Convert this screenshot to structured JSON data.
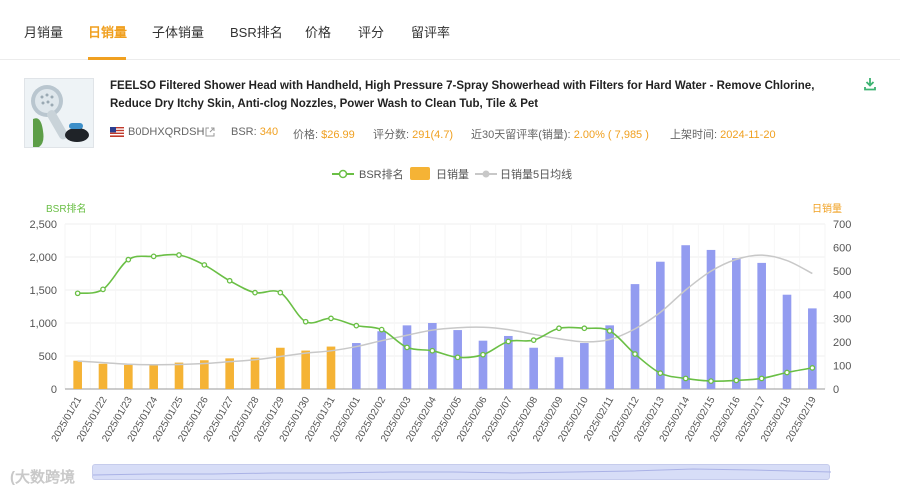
{
  "tabs": [
    {
      "label": "月销量",
      "active": false
    },
    {
      "label": "日销量",
      "active": true
    },
    {
      "label": "子体销量",
      "active": false
    },
    {
      "label": "BSR排名",
      "active": false
    },
    {
      "label": "价格",
      "active": false
    },
    {
      "label": "评分",
      "active": false
    },
    {
      "label": "留评率",
      "active": false
    }
  ],
  "product": {
    "title": "FEELSO Filtered Shower Head with Handheld, High Pressure 7-Spray Showerhead with Filters for Hard Water - Remove Chlorine, Reduce Dry Itchy Skin, Anti-clog Nozzles, Power Wash to Clean Tub, Tile & Pet",
    "asin": "B0DHXQRDSH",
    "bsr_label": "BSR:",
    "bsr_value": "340",
    "price_label": "价格:",
    "price_value": "$26.99",
    "ratings_label": "评分数:",
    "ratings_value": "291(4.7)",
    "review_rate_label": "近30天留评率(销量):",
    "review_rate_value": "2.00% ( 7,985 )",
    "listed_label": "上架时间:",
    "listed_value": "2024-11-20"
  },
  "legend": {
    "bsr": "BSR排名",
    "daily": "日销量",
    "avg": "日销量5日均线"
  },
  "colors": {
    "accent": "#f0a020",
    "bsr_line": "#6abf45",
    "bar_orange": "#f5b335",
    "bar_blue": "#939cf0",
    "avg_line": "#c8c8c8"
  },
  "watermark": "大数跨境",
  "chart_data": {
    "type": "bar",
    "title": "",
    "left_axis_label": "BSR排名",
    "right_axis_label": "日销量",
    "left_ylim": [
      0,
      2500
    ],
    "left_ticks": [
      "0",
      "500",
      "1,000",
      "1,500",
      "2,000",
      "2,500"
    ],
    "left_tick_values": [
      0,
      500,
      1000,
      1500,
      2000,
      2500
    ],
    "right_ylim": [
      0,
      700
    ],
    "right_ticks": [
      "0",
      "100",
      "200",
      "300",
      "400",
      "500",
      "600",
      "700"
    ],
    "right_tick_values": [
      0,
      100,
      200,
      300,
      400,
      500,
      600,
      700
    ],
    "categories": [
      "2025/01/21",
      "2025/01/22",
      "2025/01/23",
      "2025/01/24",
      "2025/01/25",
      "2025/01/26",
      "2025/01/27",
      "2025/01/28",
      "2025/01/29",
      "2025/01/30",
      "2025/01/31",
      "2025/02/01",
      "2025/02/02",
      "2025/02/03",
      "2025/02/04",
      "2025/02/05",
      "2025/02/06",
      "2025/02/07",
      "2025/02/08",
      "2025/02/09",
      "2025/02/10",
      "2025/02/11",
      "2025/02/12",
      "2025/02/13",
      "2025/02/14",
      "2025/02/15",
      "2025/02/16",
      "2025/02/17",
      "2025/02/18",
      "2025/02/19"
    ],
    "series": [
      {
        "name": "日销量",
        "axis": "right",
        "values": [
          120,
          107,
          102,
          102,
          112,
          122,
          130,
          133,
          175,
          163,
          180,
          195,
          245,
          270,
          280,
          250,
          205,
          225,
          175,
          135,
          195,
          270,
          445,
          540,
          610,
          590,
          555,
          535,
          400,
          342
        ],
        "estimated": [
          false,
          false,
          false,
          false,
          false,
          false,
          false,
          false,
          false,
          false,
          false,
          true,
          true,
          true,
          true,
          true,
          true,
          true,
          true,
          true,
          true,
          true,
          true,
          true,
          true,
          true,
          true,
          true,
          true,
          true
        ]
      },
      {
        "name": "BSR排名",
        "axis": "left",
        "values": [
          1450,
          1510,
          1960,
          2010,
          2030,
          1880,
          1640,
          1460,
          1460,
          1020,
          1070,
          960,
          900,
          630,
          580,
          480,
          520,
          720,
          740,
          920,
          920,
          880,
          530,
          240,
          160,
          120,
          130,
          160,
          250,
          320
        ]
      },
      {
        "name": "日销量5日均线",
        "axis": "right",
        "values": [
          118,
          112,
          105,
          103,
          104,
          108,
          116,
          124,
          138,
          152,
          162,
          180,
          205,
          228,
          250,
          260,
          262,
          252,
          232,
          213,
          200,
          210,
          255,
          325,
          420,
          500,
          550,
          568,
          545,
          490
        ]
      }
    ]
  }
}
